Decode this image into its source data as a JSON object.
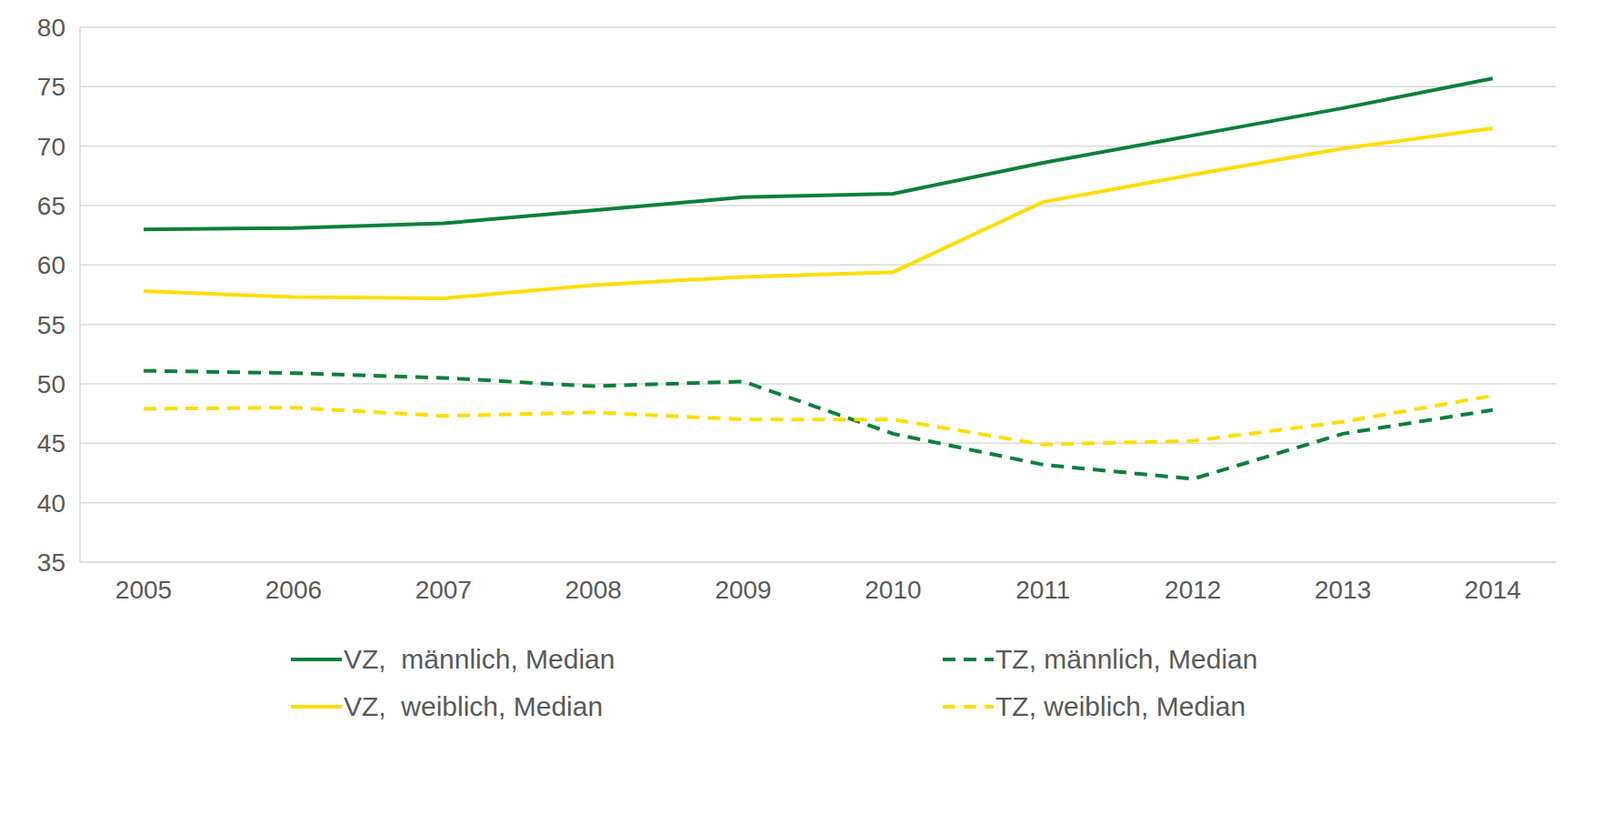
{
  "chart_data": {
    "type": "line",
    "categories": [
      "2005",
      "2006",
      "2007",
      "2008",
      "2009",
      "2010",
      "2011",
      "2012",
      "2013",
      "2014"
    ],
    "series": [
      {
        "name": "VZ,  männlich, Median",
        "color": "#0b7f3a",
        "line_style": "solid",
        "values": [
          63.0,
          63.1,
          63.5,
          64.6,
          65.7,
          66.0,
          68.6,
          70.9,
          73.2,
          75.7
        ]
      },
      {
        "name": "TZ, männlich, Median",
        "color": "#0b7f3a",
        "line_style": "dashed",
        "values": [
          51.1,
          50.9,
          50.5,
          49.8,
          50.2,
          45.8,
          43.2,
          42.0,
          45.8,
          47.8
        ]
      },
      {
        "name": "VZ,  weiblich, Median",
        "color": "#ffdd00",
        "line_style": "solid",
        "values": [
          57.8,
          57.3,
          57.2,
          58.3,
          59.0,
          59.4,
          65.3,
          67.6,
          69.8,
          71.5
        ]
      },
      {
        "name": "TZ, weiblich, Median",
        "color": "#ffdd00",
        "line_style": "dashed",
        "values": [
          47.9,
          48.0,
          47.3,
          47.6,
          47.0,
          47.0,
          44.9,
          45.2,
          46.8,
          49.0
        ]
      }
    ],
    "ylim": [
      35,
      80
    ],
    "yticks": [
      35,
      40,
      45,
      50,
      55,
      60,
      65,
      70,
      75,
      80
    ],
    "grid": true,
    "legend": "bottom"
  }
}
